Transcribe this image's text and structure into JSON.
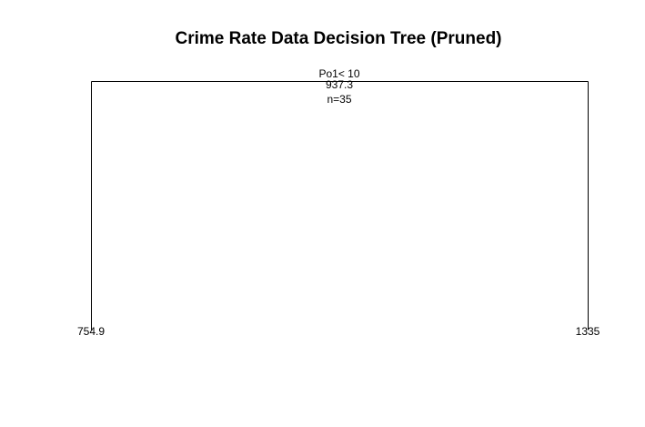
{
  "title": "Crime Rate Data Decision Tree (Pruned)",
  "tree": {
    "root": {
      "split": "Po1< 10",
      "value": "937.3",
      "count": "n=35"
    },
    "leaves": [
      {
        "value": "754.9"
      },
      {
        "value": "1335"
      }
    ]
  }
}
